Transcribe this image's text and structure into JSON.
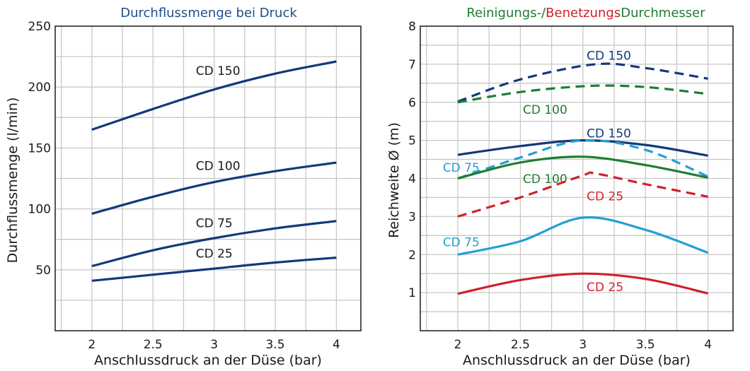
{
  "chart_data": [
    {
      "type": "line",
      "title": "Durchflussmenge bei Druck",
      "title_color": "#1f4e8c",
      "xlabel": "Anschlussdruck an der Düse (bar)",
      "ylabel": "Durchflussmenge (l/min)",
      "xlim": [
        1.7,
        4.2
      ],
      "ylim": [
        0,
        250
      ],
      "x_ticks": [
        "2",
        "2.5",
        "3",
        "3.5",
        "4"
      ],
      "y_ticks": [
        "50",
        "100",
        "150",
        "200",
        "250"
      ],
      "grid": true,
      "series": [
        {
          "label": "CD 150",
          "color": "#12397a",
          "dashed": false,
          "label_at": [
            2.85,
            210
          ],
          "x": [
            2,
            2.5,
            3,
            3.5,
            4
          ],
          "y": [
            165,
            182,
            198,
            211,
            221
          ]
        },
        {
          "label": "CD 100",
          "color": "#12397a",
          "dashed": false,
          "label_at": [
            2.85,
            132
          ],
          "x": [
            2,
            2.5,
            3,
            3.5,
            4
          ],
          "y": [
            96,
            110,
            122,
            131,
            138
          ]
        },
        {
          "label": "CD 75",
          "color": "#12397a",
          "dashed": false,
          "label_at": [
            2.85,
            85
          ],
          "x": [
            2,
            2.5,
            3,
            3.5,
            4
          ],
          "y": [
            53,
            66,
            76,
            84,
            90
          ]
        },
        {
          "label": "CD 25",
          "color": "#12397a",
          "dashed": false,
          "label_at": [
            2.85,
            60
          ],
          "x": [
            2,
            2.5,
            3,
            3.5,
            4
          ],
          "y": [
            41,
            46,
            51,
            56,
            60
          ]
        }
      ]
    },
    {
      "type": "line",
      "title_parts": [
        {
          "text": "Reinigungs-/",
          "color": "#1e7d32"
        },
        {
          "text": "Benetzungs",
          "color": "#d0202e"
        },
        {
          "text": "Durchmesser",
          "color": "#1e7d32"
        }
      ],
      "xlabel": "Anschlussdruck an der Düse (bar)",
      "ylabel": "Reichweite Ø (m)",
      "xlim": [
        1.7,
        4.2
      ],
      "ylim": [
        0,
        8
      ],
      "x_ticks": [
        "2",
        "2.5",
        "3",
        "3.5",
        "4"
      ],
      "y_ticks": [
        "1",
        "2",
        "3",
        "4",
        "5",
        "6",
        "7",
        "8"
      ],
      "grid": true,
      "series": [
        {
          "label": "CD 150",
          "color": "#12397a",
          "dashed": true,
          "label_at": [
            3.03,
            7.12
          ],
          "x": [
            2,
            2.5,
            3.1,
            3.5,
            4
          ],
          "y": [
            6.02,
            6.6,
            7.0,
            6.9,
            6.62
          ]
        },
        {
          "label": "CD 100",
          "color": "#1e7d32",
          "dashed": true,
          "label_at": [
            2.52,
            5.7
          ],
          "x": [
            2,
            2.5,
            3.05,
            3.5,
            4
          ],
          "y": [
            6.0,
            6.27,
            6.43,
            6.4,
            6.22
          ]
        },
        {
          "label": "CD 150",
          "color": "#12397a",
          "dashed": false,
          "label_at": [
            3.03,
            5.08
          ],
          "x": [
            2,
            2.5,
            3,
            3.5,
            4
          ],
          "y": [
            4.62,
            4.85,
            5.0,
            4.88,
            4.6
          ]
        },
        {
          "label": "CD 75",
          "color": "#23a0d2",
          "dashed": true,
          "label_at": [
            1.88,
            4.18
          ],
          "x": [
            2,
            2.5,
            3,
            3.5,
            4
          ],
          "y": [
            4.0,
            4.55,
            5.0,
            4.75,
            4.05
          ]
        },
        {
          "label": "CD 100",
          "color": "#1e7d32",
          "dashed": false,
          "label_at": [
            2.52,
            3.88
          ],
          "x": [
            2,
            2.5,
            3,
            3.5,
            4
          ],
          "y": [
            4.0,
            4.42,
            4.57,
            4.35,
            4.02
          ]
        },
        {
          "label": "CD 25",
          "color": "#d0202e",
          "dashed": true,
          "label_at": [
            3.03,
            3.42
          ],
          "x": [
            2,
            2.5,
            3,
            3.1,
            3.5,
            4
          ],
          "y": [
            3.0,
            3.5,
            4.08,
            4.13,
            3.85,
            3.52
          ]
        },
        {
          "label": "CD 75",
          "color": "#23a0d2",
          "dashed": false,
          "label_at": [
            1.88,
            2.22
          ],
          "x": [
            2,
            2.5,
            3,
            3.5,
            4
          ],
          "y": [
            2.0,
            2.35,
            2.97,
            2.65,
            2.05
          ]
        },
        {
          "label": "CD 25",
          "color": "#d0202e",
          "dashed": false,
          "label_at": [
            3.03,
            1.04
          ],
          "x": [
            2,
            2.5,
            3,
            3.5,
            4
          ],
          "y": [
            0.97,
            1.33,
            1.5,
            1.36,
            0.98
          ]
        }
      ]
    }
  ]
}
